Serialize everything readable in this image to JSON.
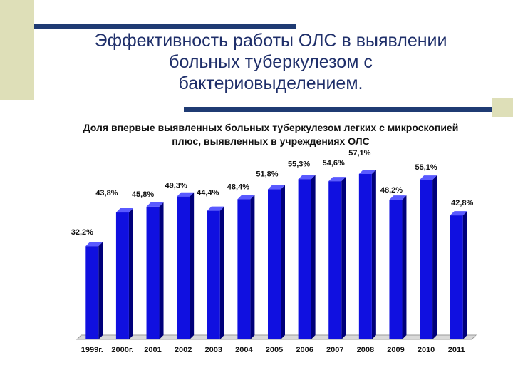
{
  "slide": {
    "title": "Эффективность работы ОЛС в выявлении больных туберкулезом с бактериовыделением."
  },
  "colors": {
    "bar_front": "#1010e0",
    "bar_side": "#00007a",
    "bar_top": "#5a5aff",
    "decor_line": "#1f3b73",
    "decor_square": "#dedfb8"
  },
  "chart_data": {
    "type": "bar",
    "title": "Доля впервые выявленных больных туберкулезом легких с микроскопией плюс, выявленных в учреждениях ОЛС",
    "categories": [
      "1999г.",
      "2000г.",
      "2001",
      "2002",
      "2003",
      "2004",
      "2005",
      "2006",
      "2007",
      "2008",
      "2009",
      "2010",
      "2011"
    ],
    "values": [
      32.2,
      43.8,
      45.8,
      49.3,
      44.4,
      48.4,
      51.8,
      55.3,
      54.6,
      57.1,
      48.2,
      55.1,
      42.8
    ],
    "value_labels": [
      "32,2%",
      "43,8%",
      "45,8%",
      "49,3%",
      "44,4%",
      "48,4%",
      "51,8%",
      "55,3%",
      "54,6%",
      "57,1%",
      "48,2%",
      "55,1%",
      "42,8%"
    ],
    "xlabel": "",
    "ylabel": "",
    "ylim": [
      0,
      70
    ],
    "grid": false,
    "legend": "none"
  }
}
